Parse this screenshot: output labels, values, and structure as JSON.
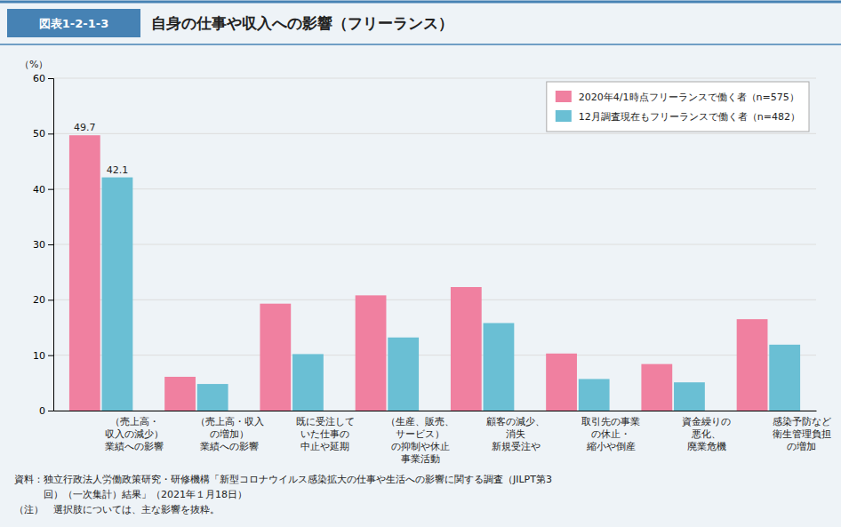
{
  "chart_data": {
    "type": "bar",
    "subtitle": "図表1-2-1-3",
    "title": "自身の仕事や収入への影響（フリーランス）",
    "y_label": "（%）",
    "categories": [
      [
        "（売上高・",
        "収入の減少）",
        "業績への影響"
      ],
      [
        "（売上高・収入",
        "の増加）",
        "業績への影響"
      ],
      [
        "既に受注して",
        "いた仕事の",
        "中止や延期"
      ],
      [
        "（生産、販売、",
        "サービス）",
        "の抑制や休止",
        "事業活動"
      ],
      [
        "顧客の減少、",
        "消失",
        "新規受注や"
      ],
      [
        "取引先の事業",
        "の休止・",
        "縮小や倒産"
      ],
      [
        "資金繰りの",
        "悪化、",
        "廃業危機"
      ],
      [
        "感染予防など",
        "衛生管理負担",
        "の増加"
      ]
    ],
    "series": [
      {
        "name": "2020年4/1時点フリーランスで働く者（n=575）",
        "color": "#F080A0",
        "values": [
          49.7,
          6.1,
          19.3,
          20.8,
          22.3,
          10.3,
          8.4,
          16.5
        ],
        "value_labels": [
          "49.7",
          null,
          null,
          null,
          null,
          null,
          null,
          null
        ]
      },
      {
        "name": "12月調査現在もフリーランスで働く者（n=482）",
        "color": "#6ABFD4",
        "values": [
          42.1,
          4.8,
          10.2,
          13.2,
          15.8,
          5.7,
          5.1,
          11.9
        ],
        "value_labels": [
          "42.1",
          null,
          null,
          null,
          null,
          null,
          null,
          null
        ]
      }
    ],
    "ylim": [
      0,
      60
    ],
    "yticks": [
      0,
      10,
      20,
      30,
      40,
      50,
      60
    ],
    "grid": true,
    "legend": "upper right",
    "annotations": [
      "資料：独立行政法人労働政策研究・研修機構「新型コロナウイルス感染拡大の仕事や生活への影響に関する調査（JILPT第3",
      "　　　回）（一次集計）結果」（2021年１月18日）",
      "（注）　選択肢については、主な影響を抜粋。"
    ]
  }
}
